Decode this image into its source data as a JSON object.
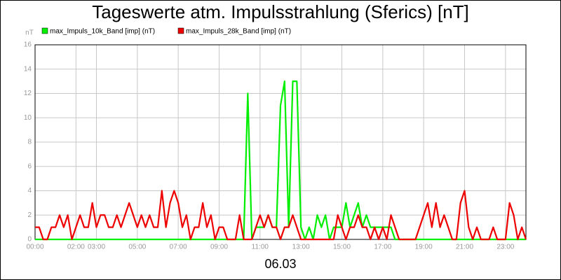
{
  "chart_data": {
    "type": "line",
    "title": "Tageswerte atm. Impulsstrahlung (Sferics) [nT]",
    "y_label": "nT",
    "x_label": "06.03",
    "x": [
      0,
      0.2,
      0.4,
      0.6,
      0.8,
      1,
      1.2,
      1.4,
      1.6,
      1.8,
      2,
      2.2,
      2.4,
      2.6,
      2.8,
      3,
      3.2,
      3.4,
      3.6,
      3.8,
      4,
      4.2,
      4.4,
      4.6,
      4.8,
      5,
      5.2,
      5.4,
      5.6,
      5.8,
      6,
      6.2,
      6.4,
      6.6,
      6.8,
      7,
      7.2,
      7.4,
      7.6,
      7.8,
      8,
      8.2,
      8.4,
      8.6,
      8.8,
      9,
      9.2,
      9.4,
      9.6,
      9.8,
      10,
      10.2,
      10.4,
      10.6,
      10.8,
      11,
      11.2,
      11.4,
      11.6,
      11.8,
      12,
      12.2,
      12.4,
      12.6,
      12.8,
      13,
      13.2,
      13.4,
      13.6,
      13.8,
      14,
      14.2,
      14.4,
      14.6,
      14.8,
      15,
      15.2,
      15.4,
      15.6,
      15.8,
      16,
      16.2,
      16.4,
      16.6,
      16.8,
      17,
      17.2,
      17.4,
      17.6,
      17.8,
      18,
      18.2,
      18.4,
      18.6,
      18.8,
      19,
      19.2,
      19.4,
      19.6,
      19.8,
      20,
      20.2,
      20.4,
      20.6,
      20.8,
      21,
      21.2,
      21.4,
      21.6,
      21.8,
      22,
      22.2,
      22.4,
      22.6,
      22.8,
      23,
      23.2,
      23.4,
      23.6,
      23.8,
      24
    ],
    "series": [
      {
        "name": "max_Impuls_10k_Band [imp] (nT)",
        "color": "#00ee00",
        "values": [
          0,
          0,
          0,
          0,
          0,
          0,
          0,
          0,
          0,
          0,
          0,
          0,
          0,
          0,
          0,
          0,
          0,
          0,
          0,
          0,
          0,
          0,
          0,
          0,
          0,
          0,
          0,
          0,
          0,
          0,
          0,
          0,
          0,
          0,
          0,
          0,
          0,
          0,
          0,
          0,
          0,
          0,
          0,
          0,
          0,
          0,
          0,
          0,
          0,
          0,
          0,
          0,
          12,
          0,
          1,
          1,
          1,
          2,
          1,
          1,
          11,
          13,
          1,
          13,
          13,
          1,
          0,
          1,
          0,
          2,
          1,
          2,
          0,
          1,
          1,
          1,
          3,
          1,
          2,
          3,
          1,
          2,
          1,
          1,
          1,
          1,
          1,
          1,
          0,
          0,
          0,
          0,
          0,
          0,
          0,
          0,
          0,
          0,
          0,
          0,
          0,
          0,
          0,
          0,
          0,
          0,
          0,
          0,
          0,
          0,
          0,
          0,
          0,
          0,
          0,
          0,
          0,
          0,
          0,
          0,
          0
        ]
      },
      {
        "name": "max_Impuls_28k_Band [imp] (nT)",
        "color": "#ee0000",
        "values": [
          1,
          1,
          0,
          0,
          1,
          1,
          2,
          1,
          2,
          0,
          1,
          2,
          1,
          1,
          3,
          1,
          2,
          2,
          1,
          1,
          2,
          1,
          2,
          3,
          2,
          1,
          2,
          1,
          2,
          1,
          1,
          4,
          1,
          3,
          4,
          3,
          1,
          2,
          0,
          1,
          1,
          3,
          1,
          2,
          0,
          1,
          1,
          0,
          0,
          0,
          2,
          0,
          0,
          0,
          1,
          2,
          1,
          2,
          1,
          1,
          0,
          1,
          1,
          2,
          1,
          0,
          0,
          0,
          0,
          0,
          0,
          0,
          0,
          0,
          2,
          1,
          0,
          1,
          1,
          2,
          1,
          1,
          0,
          1,
          0,
          1,
          0,
          2,
          1,
          0,
          0,
          0,
          0,
          0,
          1,
          2,
          3,
          1,
          3,
          1,
          2,
          1,
          0,
          0,
          3,
          4,
          1,
          0,
          1,
          0,
          0,
          0,
          1,
          0,
          0,
          0,
          3,
          2,
          0,
          1,
          0
        ]
      }
    ],
    "xlim": [
      0,
      24
    ],
    "xticks": [
      {
        "value": 0,
        "label": "00:00"
      },
      {
        "value": 2,
        "label": "02:00"
      },
      {
        "value": 3,
        "label": "03:00"
      },
      {
        "value": 5,
        "label": "05:00"
      },
      {
        "value": 7,
        "label": "07:00"
      },
      {
        "value": 9,
        "label": "09:00"
      },
      {
        "value": 11,
        "label": "11:00"
      },
      {
        "value": 13,
        "label": "13:00"
      },
      {
        "value": 15,
        "label": "15:00"
      },
      {
        "value": 17,
        "label": "17:00"
      },
      {
        "value": 19,
        "label": "19:00"
      },
      {
        "value": 21,
        "label": "21:00"
      },
      {
        "value": 23,
        "label": "23:00"
      }
    ],
    "ylim": [
      0,
      16
    ],
    "yticks": [
      0,
      2,
      4,
      6,
      8,
      10,
      12,
      14,
      16
    ],
    "grid": true
  }
}
